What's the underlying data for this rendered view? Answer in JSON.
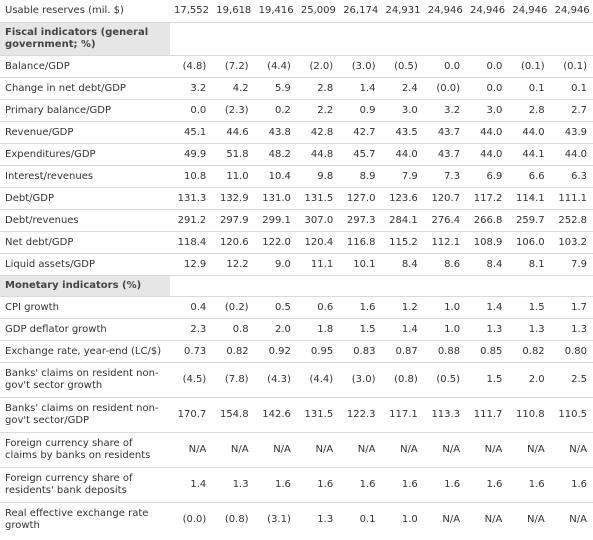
{
  "table": {
    "top_row": {
      "label": "Usable reserves (mil. $)",
      "values": [
        "17,552",
        "19,618",
        "19,416",
        "25,009",
        "26,174",
        "24,931",
        "24,946",
        "24,946",
        "24,946",
        "24,946"
      ]
    },
    "sections": [
      {
        "title": "Fiscal indicators (general government; %)",
        "rows": [
          {
            "label": "Balance/GDP",
            "values": [
              "(4.8)",
              "(7.2)",
              "(4.4)",
              "(2.0)",
              "(3.0)",
              "(0.5)",
              "0.0",
              "0.0",
              "(0.1)",
              "(0.1)"
            ]
          },
          {
            "label": "Change in net debt/GDP",
            "values": [
              "3.2",
              "4.2",
              "5.9",
              "2.8",
              "1.4",
              "2.4",
              "(0.0)",
              "0.0",
              "0.1",
              "0.1"
            ]
          },
          {
            "label": "Primary balance/GDP",
            "values": [
              "0.0",
              "(2.3)",
              "0.2",
              "2.2",
              "0.9",
              "3.0",
              "3.2",
              "3.0",
              "2.8",
              "2.7"
            ]
          },
          {
            "label": "Revenue/GDP",
            "values": [
              "45.1",
              "44.6",
              "43.8",
              "42.8",
              "42.7",
              "43.5",
              "43.7",
              "44.0",
              "44.0",
              "43.9"
            ]
          },
          {
            "label": "Expenditures/GDP",
            "values": [
              "49.9",
              "51.8",
              "48.2",
              "44.8",
              "45.7",
              "44.0",
              "43.7",
              "44.0",
              "44.1",
              "44.0"
            ]
          },
          {
            "label": "Interest/revenues",
            "values": [
              "10.8",
              "11.0",
              "10.4",
              "9.8",
              "8.9",
              "7.9",
              "7.3",
              "6.9",
              "6.6",
              "6.3"
            ]
          },
          {
            "label": "Debt/GDP",
            "values": [
              "131.3",
              "132.9",
              "131.0",
              "131.5",
              "127.0",
              "123.6",
              "120.7",
              "117.2",
              "114.1",
              "111.1"
            ]
          },
          {
            "label": "Debt/revenues",
            "values": [
              "291.2",
              "297.9",
              "299.1",
              "307.0",
              "297.3",
              "284.1",
              "276.4",
              "266.8",
              "259.7",
              "252.8"
            ]
          },
          {
            "label": "Net debt/GDP",
            "values": [
              "118.4",
              "120.6",
              "122.0",
              "120.4",
              "116.8",
              "115.2",
              "112.1",
              "108.9",
              "106.0",
              "103.2"
            ]
          },
          {
            "label": "Liquid assets/GDP",
            "values": [
              "12.9",
              "12.2",
              "9.0",
              "11.1",
              "10.1",
              "8.4",
              "8.6",
              "8.4",
              "8.1",
              "7.9"
            ]
          }
        ]
      },
      {
        "title": "Monetary indicators (%)",
        "rows": [
          {
            "label": "CPI growth",
            "values": [
              "0.4",
              "(0.2)",
              "0.5",
              "0.6",
              "1.6",
              "1.2",
              "1.0",
              "1.4",
              "1.5",
              "1.7"
            ]
          },
          {
            "label": "GDP deflator growth",
            "values": [
              "2.3",
              "0.8",
              "2.0",
              "1.8",
              "1.5",
              "1.4",
              "1.0",
              "1.3",
              "1.3",
              "1.3"
            ]
          },
          {
            "label": "Exchange rate, year-end (LC/$)",
            "values": [
              "0.73",
              "0.82",
              "0.92",
              "0.95",
              "0.83",
              "0.87",
              "0.88",
              "0.85",
              "0.82",
              "0.80"
            ]
          },
          {
            "label": "Banks' claims on resident non-gov't sector growth",
            "values": [
              "(4.5)",
              "(7.8)",
              "(4.3)",
              "(4.4)",
              "(3.0)",
              "(0.8)",
              "(0.5)",
              "1.5",
              "2.0",
              "2.5"
            ]
          },
          {
            "label": "Banks' claims on resident non-gov't sector/GDP",
            "values": [
              "170.7",
              "154.8",
              "142.6",
              "131.5",
              "122.3",
              "117.1",
              "113.3",
              "111.7",
              "110.8",
              "110.5"
            ]
          },
          {
            "label": "Foreign currency share of claims by banks on residents",
            "values": [
              "N/A",
              "N/A",
              "N/A",
              "N/A",
              "N/A",
              "N/A",
              "N/A",
              "N/A",
              "N/A",
              "N/A"
            ]
          },
          {
            "label": "Foreign currency share of residents' bank deposits",
            "values": [
              "1.4",
              "1.3",
              "1.6",
              "1.6",
              "1.6",
              "1.6",
              "1.6",
              "1.6",
              "1.6",
              "1.6"
            ]
          },
          {
            "label": "Real effective exchange rate growth",
            "values": [
              "(0.0)",
              "(0.8)",
              "(3.1)",
              "1.3",
              "0.1",
              "1.0",
              "N/A",
              "N/A",
              "N/A",
              "N/A"
            ]
          }
        ]
      }
    ]
  }
}
